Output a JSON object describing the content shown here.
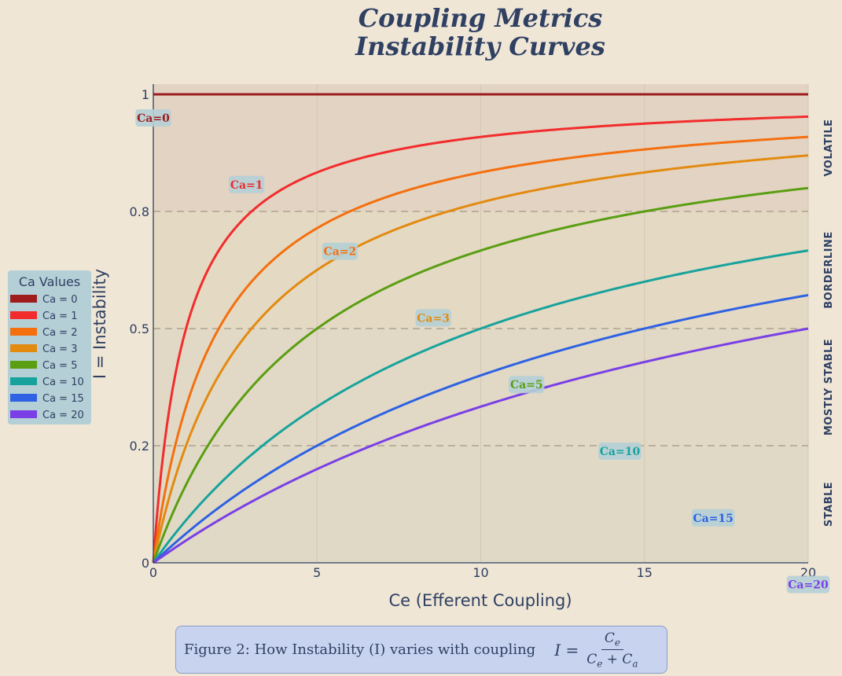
{
  "chart_data": {
    "type": "line",
    "title_lines": [
      "Coupling Metrics",
      "Instability Curves"
    ],
    "xlabel": "Ce (Efferent Coupling)",
    "ylabel": "I = Instability",
    "xlim": [
      0,
      20
    ],
    "ylim": [
      0,
      1
    ],
    "x_ticks": [
      0,
      5,
      10,
      15,
      20
    ],
    "y_ticks": [
      {
        "value": 0,
        "label": "0"
      },
      {
        "value": 0.25,
        "label": "0.2"
      },
      {
        "value": 0.5,
        "label": "0.5"
      },
      {
        "value": 0.75,
        "label": "0.8"
      },
      {
        "value": 1,
        "label": "1"
      }
    ],
    "threshold_lines": [
      0.25,
      0.5,
      0.75
    ],
    "zones": [
      {
        "label": "STABLE",
        "from": 0,
        "to": 0.25,
        "color": "#e0d9c6"
      },
      {
        "label": "MOSTLY STABLE",
        "from": 0.25,
        "to": 0.5,
        "color": "#e1d9c5"
      },
      {
        "label": "BORDERLINE",
        "from": 0.5,
        "to": 0.75,
        "color": "#e4d9c3"
      },
      {
        "label": "VOLATILE",
        "from": 0.75,
        "to": 1,
        "color": "#e3d3c3"
      }
    ],
    "formula": "I = Ce / (Ce + Ca)",
    "series": [
      {
        "name": "Ca = 0",
        "ca": 0,
        "color": "#9e1c1c",
        "label": "Ca=0",
        "label_x": 0
      },
      {
        "name": "Ca = 1",
        "ca": 1,
        "color": "#f22c2c",
        "label": "Ca=1",
        "label_x": 2.85
      },
      {
        "name": "Ca = 2",
        "ca": 2,
        "color": "#f46f0e",
        "label": "Ca=2",
        "label_x": 5.7
      },
      {
        "name": "Ca = 3",
        "ca": 3,
        "color": "#e38a10",
        "label": "Ca=3",
        "label_x": 8.55
      },
      {
        "name": "Ca = 5",
        "ca": 5,
        "color": "#5a9e12",
        "label": "Ca=5",
        "label_x": 11.4
      },
      {
        "name": "Ca = 10",
        "ca": 10,
        "color": "#17a39c",
        "label": "Ca=10",
        "label_x": 14.25
      },
      {
        "name": "Ca = 15",
        "ca": 15,
        "color": "#2e62e3",
        "label": "Ca=15",
        "label_x": 17.1
      },
      {
        "name": "Ca = 20",
        "ca": 20,
        "color": "#7a3fe6",
        "label": "Ca=20",
        "label_x": 20
      }
    ],
    "legend": {
      "title": "Ca Values",
      "position": "left"
    }
  },
  "caption": {
    "text": "Figure 2: How Instability (I) varies with coupling",
    "formula_lhs": "I =",
    "formula_num": "C",
    "formula_num_sub": "e",
    "formula_den_a": "C",
    "formula_den_a_sub": "e",
    "formula_den_plus": " + ",
    "formula_den_b": "C",
    "formula_den_b_sub": "a"
  }
}
